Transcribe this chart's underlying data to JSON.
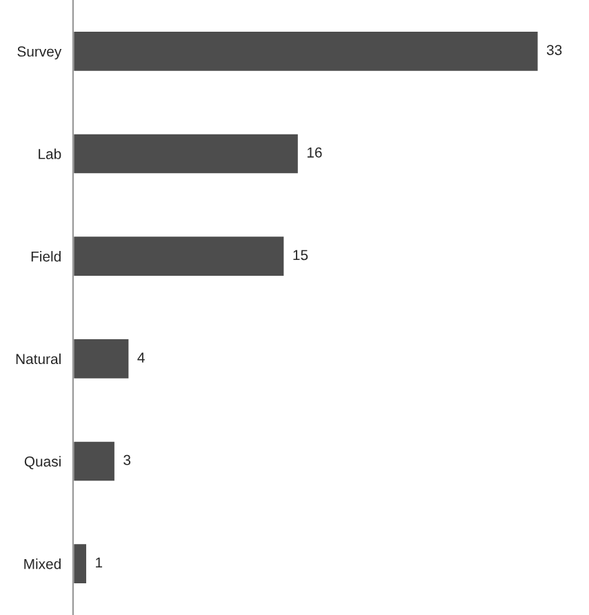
{
  "chart_data": {
    "type": "bar",
    "orientation": "horizontal",
    "categories": [
      "Survey",
      "Lab",
      "Field",
      "Natural",
      "Quasi",
      "Mixed"
    ],
    "values": [
      33,
      16,
      15,
      4,
      3,
      1
    ],
    "color": "#4d4d4d",
    "data_labels": true,
    "tick_labels": "y",
    "grid": false,
    "legend": false
  }
}
